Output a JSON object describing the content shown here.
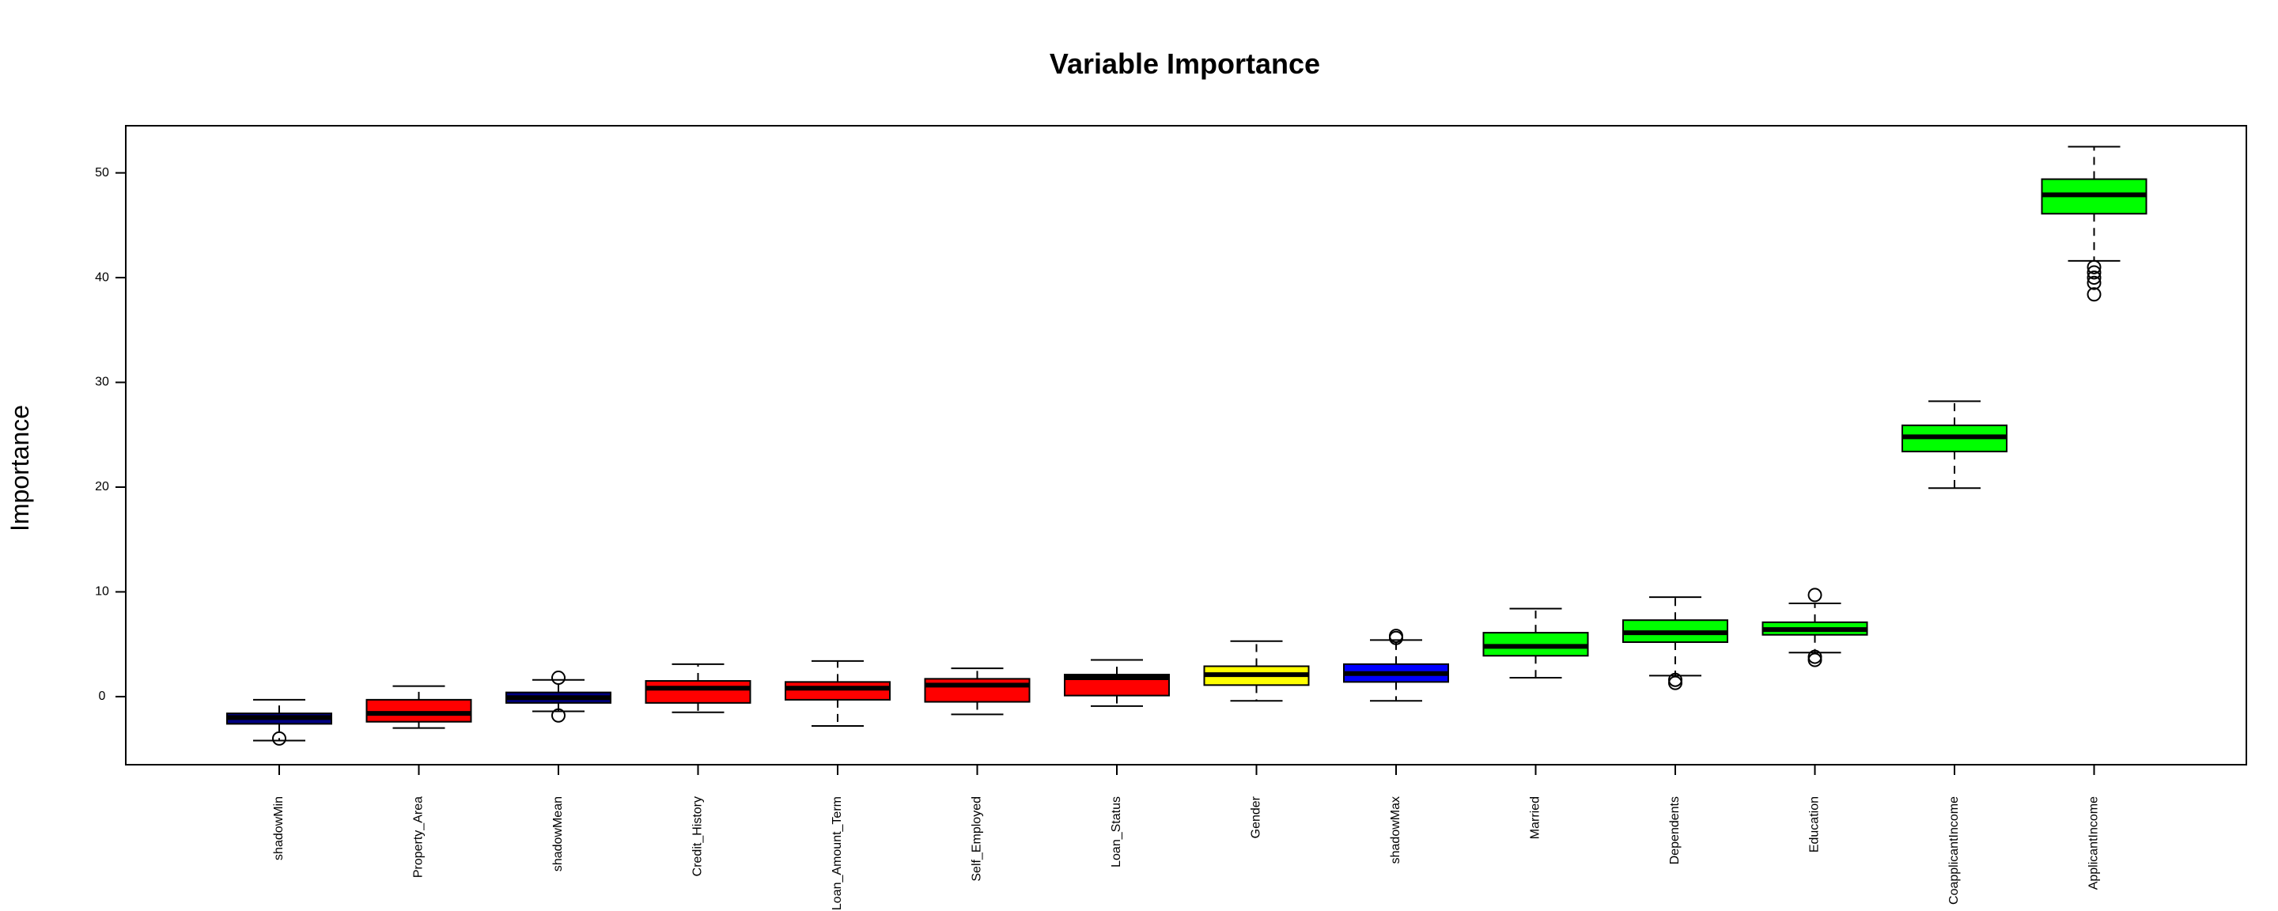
{
  "chart_data": {
    "type": "boxplot",
    "title": "Variable Importance",
    "xlabel": "",
    "ylabel": "Importance",
    "ylim": [
      -6.5,
      54.5
    ],
    "yticks": [
      0,
      10,
      20,
      30,
      40,
      50
    ],
    "grid": false,
    "legend": "none",
    "colors": {
      "green": "#00ff00",
      "red": "#ff0000",
      "yellow": "#ffff00",
      "blue": "#0000ff",
      "navy": "#000080"
    },
    "boxes": [
      {
        "label": "shadowMin",
        "color": "#000080",
        "whisker_low": -4.2,
        "q1": -2.6,
        "median": -2.0,
        "q3": -1.6,
        "whisker_high": -0.3,
        "outliers": [
          -4.0
        ]
      },
      {
        "label": "Property_Area",
        "color": "#ff0000",
        "whisker_low": -3.0,
        "q1": -2.4,
        "median": -1.6,
        "q3": -0.3,
        "whisker_high": 1.0,
        "outliers": []
      },
      {
        "label": "shadowMean",
        "color": "#000080",
        "whisker_low": -1.4,
        "q1": -0.6,
        "median": -0.1,
        "q3": 0.4,
        "whisker_high": 1.6,
        "outliers": [
          1.8,
          -1.8
        ]
      },
      {
        "label": "Credit_History",
        "color": "#ff0000",
        "whisker_low": -1.5,
        "q1": -0.6,
        "median": 0.8,
        "q3": 1.5,
        "whisker_high": 3.1,
        "outliers": []
      },
      {
        "label": "Loan_Amount_Term",
        "color": "#ff0000",
        "whisker_low": -2.8,
        "q1": -0.3,
        "median": 0.8,
        "q3": 1.4,
        "whisker_high": 3.4,
        "outliers": []
      },
      {
        "label": "Self_Employed",
        "color": "#ff0000",
        "whisker_low": -1.7,
        "q1": -0.5,
        "median": 1.1,
        "q3": 1.7,
        "whisker_high": 2.7,
        "outliers": []
      },
      {
        "label": "Loan_Status",
        "color": "#ff0000",
        "whisker_low": -0.9,
        "q1": 0.1,
        "median": 1.8,
        "q3": 2.1,
        "whisker_high": 3.5,
        "outliers": []
      },
      {
        "label": "Gender",
        "color": "#ffff00",
        "whisker_low": -0.4,
        "q1": 1.1,
        "median": 2.1,
        "q3": 2.9,
        "whisker_high": 5.3,
        "outliers": []
      },
      {
        "label": "shadowMax",
        "color": "#0000ff",
        "whisker_low": -0.4,
        "q1": 1.4,
        "median": 2.2,
        "q3": 3.1,
        "whisker_high": 5.4,
        "outliers": [
          5.6,
          5.8
        ]
      },
      {
        "label": "Married",
        "color": "#00ff00",
        "whisker_low": 1.8,
        "q1": 3.9,
        "median": 4.8,
        "q3": 6.1,
        "whisker_high": 8.4,
        "outliers": []
      },
      {
        "label": "Dependents",
        "color": "#00ff00",
        "whisker_low": 2.0,
        "q1": 5.2,
        "median": 6.1,
        "q3": 7.3,
        "whisker_high": 9.5,
        "outliers": [
          1.6,
          1.3
        ]
      },
      {
        "label": "Education",
        "color": "#00ff00",
        "whisker_low": 4.2,
        "q1": 5.9,
        "median": 6.4,
        "q3": 7.1,
        "whisker_high": 8.9,
        "outliers": [
          9.7,
          3.8,
          3.5
        ]
      },
      {
        "label": "CoapplicantIncome",
        "color": "#00ff00",
        "whisker_low": 19.9,
        "q1": 23.4,
        "median": 24.8,
        "q3": 25.9,
        "whisker_high": 28.2,
        "outliers": []
      },
      {
        "label": "ApplicantIncome",
        "color": "#00ff00",
        "whisker_low": 41.6,
        "q1": 46.1,
        "median": 47.9,
        "q3": 49.4,
        "whisker_high": 52.5,
        "outliers": [
          41.0,
          40.5,
          40.0,
          39.5,
          38.4
        ]
      }
    ]
  }
}
